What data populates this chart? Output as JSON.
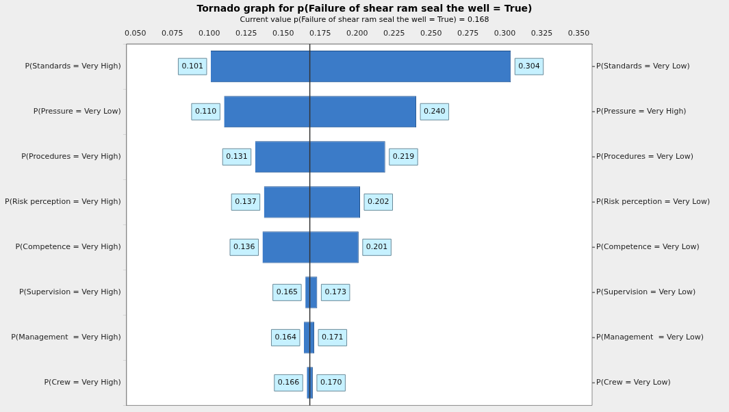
{
  "chart_data": {
    "type": "bar",
    "orientation": "horizontal",
    "title": "Tornado graph for p(Failure of shear ram seal the well = True)",
    "subtitle": "Current value p(Failure of shear ram seal the well = True) = 0.168",
    "categories": [
      "P(Standards = Very High)",
      "P(Pressure = Very Low)",
      "P(Procedures = Very High)",
      "P(Risk perception = Very High)",
      "P(Competence = Very High)",
      "P(Supervision = Very High)",
      "P(Management  = Very High)",
      "P(Crew = Very High)"
    ],
    "base": [
      0.101,
      0.11,
      0.131,
      0.137,
      0.136,
      0.165,
      0.164,
      0.166
    ],
    "values": [
      0.203,
      0.13,
      0.088,
      0.065,
      0.065,
      0.008,
      0.007,
      0.004
    ],
    "color": "#3b7bc8",
    "xlim": [
      0.044,
      0.359
    ],
    "xticks": [
      {
        "value": 0.05,
        "label": "0.050"
      },
      {
        "value": 0.075,
        "label": "0.075"
      },
      {
        "value": 0.1,
        "label": "0.100"
      },
      {
        "value": 0.125,
        "label": "0.125"
      },
      {
        "value": 0.15,
        "label": "0.150"
      },
      {
        "value": 0.175,
        "label": "0.175"
      },
      {
        "value": 0.2,
        "label": "0.200"
      },
      {
        "value": 0.225,
        "label": "0.225"
      },
      {
        "value": 0.25,
        "label": "0.250"
      },
      {
        "value": 0.275,
        "label": "0.275"
      },
      {
        "value": 0.3,
        "label": "0.300"
      },
      {
        "value": 0.325,
        "label": "0.325"
      },
      {
        "value": 0.35,
        "label": "0.350"
      }
    ],
    "ref_lines": [
      {
        "axis": "x",
        "value": 0.168,
        "color": "#333333"
      }
    ],
    "annotations": [
      "P(Standards = Very Low)",
      "P(Pressure = Very High)",
      "P(Procedures = Very Low)",
      "P(Risk perception = Very Low)",
      "P(Competence = Very Low)",
      "P(Supervision = Very Low)",
      "P(Management  = Very Low)",
      "P(Crew = Very Low)",
      {
        "text": "0.101",
        "x": 0.101,
        "y": "P(Standards = Very High)"
      },
      {
        "text": "0.304",
        "x": 0.304,
        "y": "P(Standards = Very High)"
      },
      {
        "text": "0.110",
        "x": 0.11,
        "y": "P(Pressure = Very Low)"
      },
      {
        "text": "0.240",
        "x": 0.24,
        "y": "P(Pressure = Very Low)"
      },
      {
        "text": "0.131",
        "x": 0.131,
        "y": "P(Procedures = Very High)"
      },
      {
        "text": "0.219",
        "x": 0.219,
        "y": "P(Procedures = Very High)"
      },
      {
        "text": "0.137",
        "x": 0.137,
        "y": "P(Risk perception = Very High)"
      },
      {
        "text": "0.202",
        "x": 0.202,
        "y": "P(Risk perception = Very High)"
      },
      {
        "text": "0.136",
        "x": 0.136,
        "y": "P(Competence = Very High)"
      },
      {
        "text": "0.201",
        "x": 0.201,
        "y": "P(Competence = Very High)"
      },
      {
        "text": "0.165",
        "x": 0.165,
        "y": "P(Supervision = Very High)"
      },
      {
        "text": "0.173",
        "x": 0.173,
        "y": "P(Supervision = Very High)"
      },
      {
        "text": "0.164",
        "x": 0.164,
        "y": "P(Management  = Very High)"
      },
      {
        "text": "0.171",
        "x": 0.171,
        "y": "P(Management  = Very High)"
      },
      {
        "text": "0.166",
        "x": 0.166,
        "y": "P(Crew = Very High)"
      },
      {
        "text": "0.170",
        "x": 0.17,
        "y": "P(Crew = Very High)"
      }
    ]
  }
}
